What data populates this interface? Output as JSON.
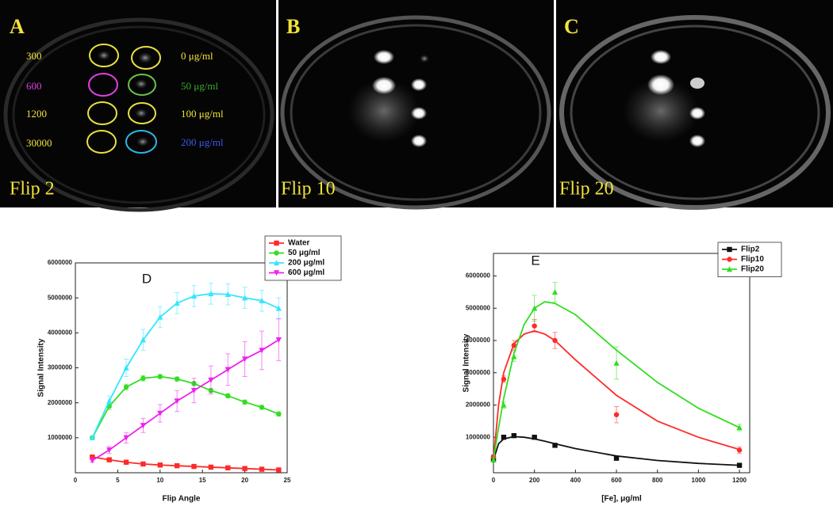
{
  "panels": [
    {
      "label": "A",
      "caption": "Flip 2",
      "rows": [
        "300",
        "600",
        "1200",
        "30000"
      ],
      "concentrations": [
        "0 μg/ml",
        "50 μg/ml",
        "100 μg/ml",
        "200 μg/ml"
      ]
    },
    {
      "label": "B",
      "caption": "Flip 10"
    },
    {
      "label": "C",
      "caption": "Flip 20"
    }
  ],
  "chart_data": [
    {
      "type": "line",
      "title": "D",
      "x_label": "Flip Angle",
      "y_label": "Signal Intensity",
      "x": [
        2,
        4,
        6,
        8,
        10,
        12,
        14,
        16,
        18,
        20,
        22,
        24
      ],
      "xlim": [
        0,
        25
      ],
      "xticks": [
        0,
        5,
        10,
        15,
        20,
        25
      ],
      "ylim": [
        0,
        6000000
      ],
      "yticks": [
        1000000,
        2000000,
        3000000,
        4000000,
        5000000,
        6000000
      ],
      "legend": "upper right",
      "series": [
        {
          "name": "Water",
          "color": "#ff2a2a",
          "marker": "square",
          "values": [
            450000,
            370000,
            300000,
            250000,
            220000,
            200000,
            180000,
            160000,
            140000,
            120000,
            100000,
            80000
          ],
          "errors": [
            20000,
            20000,
            20000,
            20000,
            20000,
            20000,
            20000,
            20000,
            20000,
            20000,
            20000,
            20000
          ]
        },
        {
          "name": "50 μg/ml",
          "color": "#33dd22",
          "marker": "circle",
          "values": [
            1000000,
            1900000,
            2450000,
            2700000,
            2750000,
            2680000,
            2550000,
            2350000,
            2200000,
            2020000,
            1870000,
            1680000
          ],
          "errors": [
            50000,
            100000,
            80000,
            80000,
            60000,
            60000,
            60000,
            60000,
            60000,
            60000,
            60000,
            60000
          ]
        },
        {
          "name": "200 μg/ml",
          "color": "#33e6ff",
          "marker": "triangle-up",
          "values": [
            1000000,
            2050000,
            3000000,
            3800000,
            4450000,
            4850000,
            5050000,
            5120000,
            5100000,
            5000000,
            4920000,
            4700000
          ],
          "errors": [
            50000,
            150000,
            250000,
            300000,
            300000,
            300000,
            300000,
            300000,
            300000,
            300000,
            300000,
            300000
          ]
        },
        {
          "name": "600 μg/ml",
          "color": "#ee22ee",
          "marker": "triangle-down",
          "values": [
            350000,
            650000,
            1000000,
            1350000,
            1700000,
            2050000,
            2350000,
            2650000,
            2950000,
            3250000,
            3500000,
            3800000
          ],
          "errors": [
            50000,
            100000,
            150000,
            200000,
            250000,
            300000,
            350000,
            400000,
            450000,
            500000,
            550000,
            600000
          ]
        }
      ]
    },
    {
      "type": "scatter",
      "title": "E",
      "x_label": "[Fe], μg/ml",
      "y_label": "Signal Intensity",
      "x": [
        0,
        50,
        100,
        200,
        300,
        600,
        1200
      ],
      "fit_x": [
        0,
        25,
        50,
        100,
        150,
        200,
        250,
        300,
        400,
        600,
        800,
        1000,
        1200
      ],
      "xlim": [
        0,
        1250
      ],
      "xticks": [
        0,
        200,
        400,
        600,
        800,
        1000,
        1200
      ],
      "ylim": [
        -100000,
        6700000
      ],
      "yticks": [
        1000000,
        2000000,
        3000000,
        4000000,
        5000000,
        6000000
      ],
      "legend": "upper right",
      "series": [
        {
          "name": "Flip2",
          "color": "#111111",
          "marker": "square",
          "values": [
            300000,
            1000000,
            1050000,
            1000000,
            750000,
            350000,
            130000
          ],
          "errors": [
            20000,
            20000,
            20000,
            20000,
            20000,
            20000,
            20000
          ],
          "fit_values": [
            300000,
            800000,
            950000,
            1020000,
            1000000,
            950000,
            880000,
            800000,
            650000,
            420000,
            280000,
            190000,
            130000
          ]
        },
        {
          "name": "Flip10",
          "color": "#ff2a2a",
          "marker": "circle",
          "values": [
            400000,
            2800000,
            3850000,
            4450000,
            4000000,
            1700000,
            600000
          ],
          "errors": [
            50000,
            100000,
            150000,
            200000,
            250000,
            250000,
            100000
          ],
          "fit_values": [
            300000,
            2000000,
            3000000,
            3900000,
            4200000,
            4300000,
            4200000,
            4000000,
            3400000,
            2300000,
            1500000,
            1000000,
            620000
          ]
        },
        {
          "name": "Flip20",
          "color": "#33dd22",
          "marker": "triangle-up",
          "values": [
            300000,
            2000000,
            3500000,
            5000000,
            5500000,
            3300000,
            1300000
          ],
          "errors": [
            50000,
            100000,
            150000,
            400000,
            300000,
            500000,
            100000
          ],
          "fit_values": [
            300000,
            1300000,
            2200000,
            3600000,
            4500000,
            5000000,
            5200000,
            5150000,
            4800000,
            3700000,
            2700000,
            1900000,
            1300000
          ]
        }
      ]
    }
  ]
}
